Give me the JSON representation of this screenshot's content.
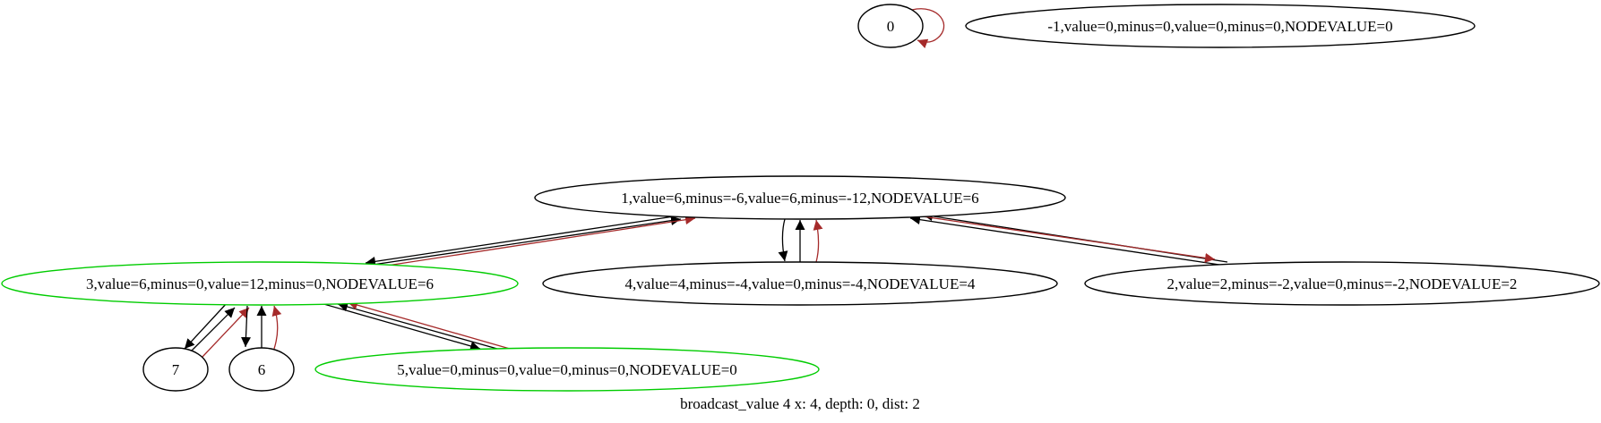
{
  "caption": "broadcast_value 4 x: 4, depth: 0, dist: 2",
  "colors": {
    "edge_default": "#000000",
    "edge_highlight": "#a52a2a",
    "node_default": "#000000",
    "node_highlight": "#00cc00"
  },
  "nodes": [
    {
      "id": "0",
      "label": "0",
      "highlight": false
    },
    {
      "id": "-1",
      "label": "-1,value=0,minus=0,value=0,minus=0,NODEVALUE=0",
      "highlight": false
    },
    {
      "id": "1",
      "label": "1,value=6,minus=-6,value=6,minus=-12,NODEVALUE=6",
      "highlight": false
    },
    {
      "id": "3",
      "label": "3,value=6,minus=0,value=12,minus=0,NODEVALUE=6",
      "highlight": true
    },
    {
      "id": "4",
      "label": "4,value=4,minus=-4,value=0,minus=-4,NODEVALUE=4",
      "highlight": false
    },
    {
      "id": "2",
      "label": "2,value=2,minus=-2,value=0,minus=-2,NODEVALUE=2",
      "highlight": false
    },
    {
      "id": "7",
      "label": "7",
      "highlight": false
    },
    {
      "id": "6",
      "label": "6",
      "highlight": false
    },
    {
      "id": "5",
      "label": "5,value=0,minus=0,value=0,minus=0,NODEVALUE=0",
      "highlight": true
    }
  ],
  "edges": [
    {
      "from": "0",
      "to": "0",
      "color": "highlight"
    },
    {
      "from": "1",
      "to": "3",
      "color": "default"
    },
    {
      "from": "3",
      "to": "1",
      "color": "default"
    },
    {
      "from": "3",
      "to": "1",
      "color": "highlight"
    },
    {
      "from": "1",
      "to": "4",
      "color": "default"
    },
    {
      "from": "4",
      "to": "1",
      "color": "default"
    },
    {
      "from": "4",
      "to": "1",
      "color": "highlight"
    },
    {
      "from": "1",
      "to": "2",
      "color": "default"
    },
    {
      "from": "2",
      "to": "1",
      "color": "default"
    },
    {
      "from": "2",
      "to": "1",
      "color": "highlight"
    },
    {
      "from": "3",
      "to": "7",
      "color": "default"
    },
    {
      "from": "7",
      "to": "3",
      "color": "default"
    },
    {
      "from": "7",
      "to": "3",
      "color": "highlight"
    },
    {
      "from": "3",
      "to": "6",
      "color": "default"
    },
    {
      "from": "6",
      "to": "3",
      "color": "default"
    },
    {
      "from": "6",
      "to": "3",
      "color": "highlight"
    },
    {
      "from": "3",
      "to": "5",
      "color": "default"
    },
    {
      "from": "5",
      "to": "3",
      "color": "default"
    },
    {
      "from": "5",
      "to": "3",
      "color": "highlight"
    }
  ]
}
